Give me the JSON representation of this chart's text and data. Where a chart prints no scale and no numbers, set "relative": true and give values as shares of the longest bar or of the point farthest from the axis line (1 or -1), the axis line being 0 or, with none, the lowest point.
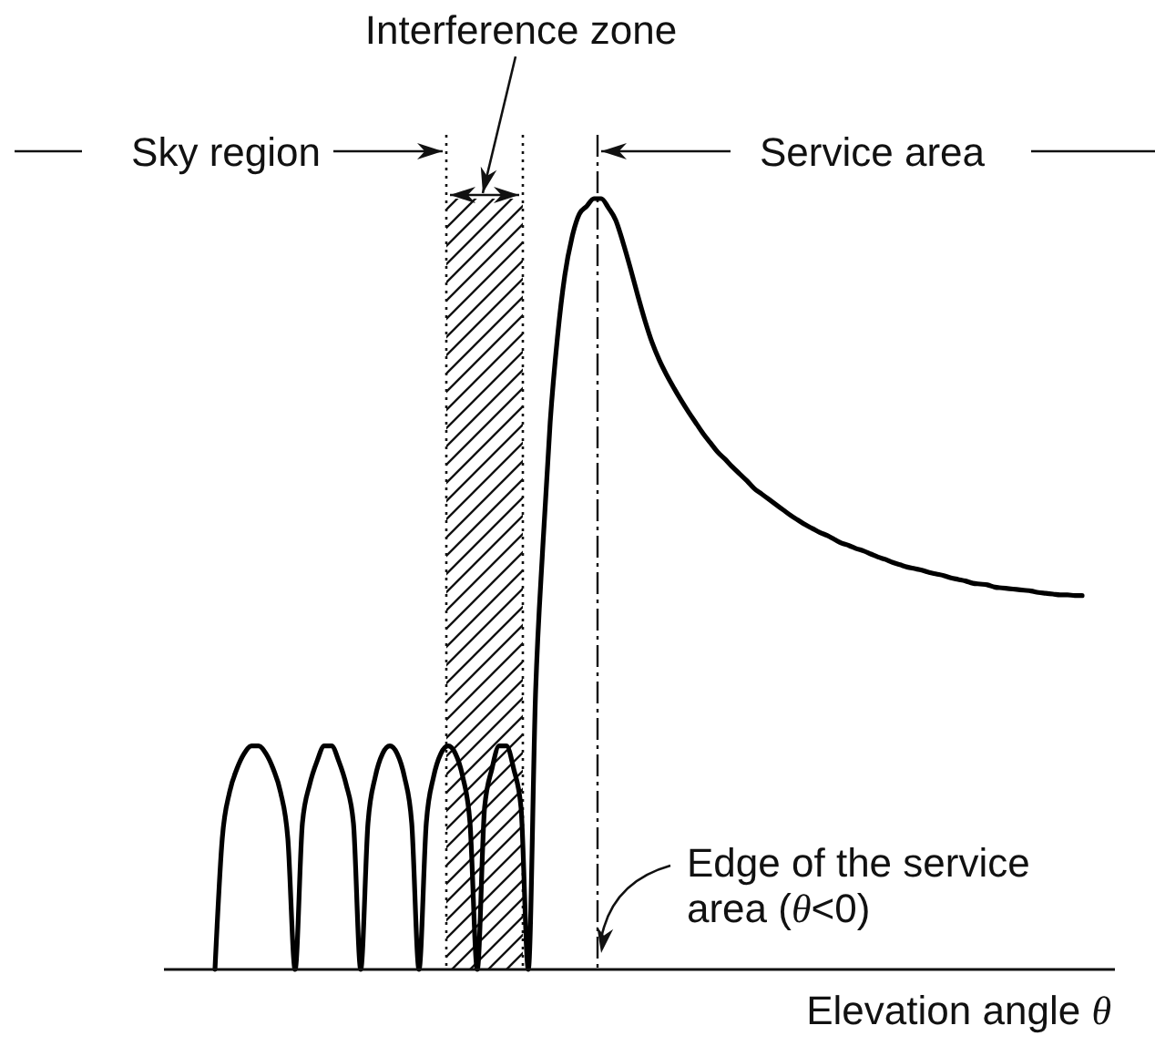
{
  "chart_data": {
    "type": "line",
    "relative": true,
    "categories": [
      null,
      null,
      null,
      null,
      null,
      null,
      null,
      null,
      null,
      null,
      null,
      null,
      null,
      null,
      null,
      null,
      null,
      null,
      null,
      null,
      null,
      null,
      null,
      null,
      null,
      null,
      null,
      null,
      null,
      null,
      null,
      null,
      null,
      null,
      null,
      null,
      null,
      null,
      null,
      null,
      null,
      null,
      null,
      null,
      null,
      null,
      null,
      null,
      null,
      null,
      null,
      null,
      null,
      null,
      null,
      null,
      null,
      null,
      null,
      null,
      null,
      null,
      null,
      null,
      null,
      null,
      null,
      null,
      null,
      null,
      null,
      null,
      null,
      null,
      null,
      null,
      null,
      null,
      null,
      null,
      null,
      null,
      null,
      null,
      null,
      null,
      null,
      null,
      null,
      null,
      null,
      null,
      null,
      null,
      null,
      null,
      null,
      null,
      null,
      null,
      null,
      null,
      null,
      null,
      null,
      null,
      null,
      null,
      null,
      null,
      null,
      null,
      null,
      null,
      null,
      null,
      null,
      null,
      null,
      null
    ],
    "values": [
      0,
      0.17,
      0.23,
      0.26,
      0.28,
      0.29,
      0.29,
      0.28,
      0.26,
      0.23,
      0.17,
      0,
      0.19,
      0.24,
      0.27,
      0.29,
      0.29,
      0.27,
      0.24,
      0.19,
      0,
      0.19,
      0.25,
      0.28,
      0.29,
      0.28,
      0.25,
      0.19,
      0,
      0.19,
      0.25,
      0.28,
      0.29,
      0.28,
      0.25,
      0.19,
      0,
      0.21,
      0.26,
      0.29,
      0.29,
      0.26,
      0.21,
      0,
      0.36,
      0.55,
      0.71,
      0.82,
      0.9,
      0.95,
      0.98,
      0.99,
      1,
      1,
      0.988,
      0.972,
      0.943,
      0.91,
      0.875,
      0.842,
      0.813,
      0.79,
      0.771,
      0.754,
      0.738,
      0.723,
      0.709,
      0.695,
      0.683,
      0.671,
      0.662,
      0.652,
      0.643,
      0.634,
      0.624,
      0.617,
      0.61,
      0.603,
      0.596,
      0.589,
      0.583,
      0.577,
      0.572,
      0.567,
      0.563,
      0.558,
      0.553,
      0.55,
      0.546,
      0.543,
      0.539,
      0.535,
      0.532,
      0.528,
      0.525,
      0.522,
      0.52,
      0.518,
      0.515,
      0.513,
      0.511,
      0.508,
      0.506,
      0.504,
      0.501,
      0.5,
      0.499,
      0.496,
      0.495,
      0.494,
      0.493,
      0.492,
      0.491,
      0.489,
      0.488,
      0.487,
      0.486,
      0.486,
      0.485,
      0.485
    ],
    "color": "#000000",
    "xlabel": "Elevation angle θ",
    "annotations": [
      "Interference zone",
      "Sky region",
      "Service area",
      "Edge of the service area (θ<0)"
    ]
  }
}
